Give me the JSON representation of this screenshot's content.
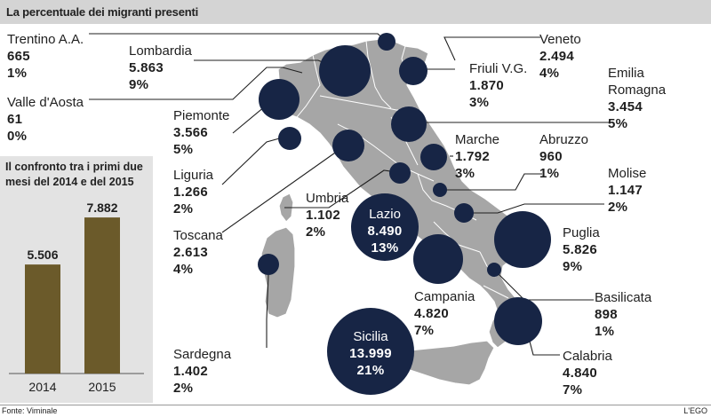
{
  "title": "La percentuale dei migranti presenti",
  "source": "Fonte: Viminale",
  "credit": "L'EGO",
  "colors": {
    "bubble": "#172545",
    "map": "#a6a6a6",
    "bar": "#6b5a2a",
    "header": "#d4d4d4"
  },
  "regions": [
    {
      "name": "Trentino A.A.",
      "count": "665",
      "pct": "1%"
    },
    {
      "name": "Lombardia",
      "count": "5.863",
      "pct": "9%"
    },
    {
      "name": "Valle d'Aosta",
      "count": "61",
      "pct": "0%"
    },
    {
      "name": "Piemonte",
      "count": "3.566",
      "pct": "5%"
    },
    {
      "name": "Liguria",
      "count": "1.266",
      "pct": "2%"
    },
    {
      "name": "Toscana",
      "count": "2.613",
      "pct": "4%"
    },
    {
      "name": "Umbria",
      "count": "1.102",
      "pct": "2%"
    },
    {
      "name": "Lazio",
      "count": "8.490",
      "pct": "13%"
    },
    {
      "name": "Sardegna",
      "count": "1.402",
      "pct": "2%"
    },
    {
      "name": "Sicilia",
      "count": "13.999",
      "pct": "21%"
    },
    {
      "name": "Campania",
      "count": "4.820",
      "pct": "7%"
    },
    {
      "name": "Calabria",
      "count": "4.840",
      "pct": "7%"
    },
    {
      "name": "Basilicata",
      "count": "898",
      "pct": "1%"
    },
    {
      "name": "Puglia",
      "count": "5.826",
      "pct": "9%"
    },
    {
      "name": "Molise",
      "count": "1.147",
      "pct": "2%"
    },
    {
      "name": "Abruzzo",
      "count": "960",
      "pct": "1%"
    },
    {
      "name": "Marche",
      "count": "1.792",
      "pct": "3%"
    },
    {
      "name": "Emilia Romagna",
      "count": "3.454",
      "pct": "5%"
    },
    {
      "name": "Friuli V.G.",
      "count": "1.870",
      "pct": "3%"
    },
    {
      "name": "Veneto",
      "count": "2.494",
      "pct": "4%"
    }
  ],
  "comparison": {
    "title": "Il confronto tra i primi due mesi del 2014 e del 2015",
    "chart_data": {
      "type": "bar",
      "categories": [
        "2014",
        "2015"
      ],
      "values": [
        5506,
        7882
      ],
      "value_labels": [
        "5.506",
        "7.882"
      ],
      "ylim": [
        0,
        8200
      ]
    }
  }
}
